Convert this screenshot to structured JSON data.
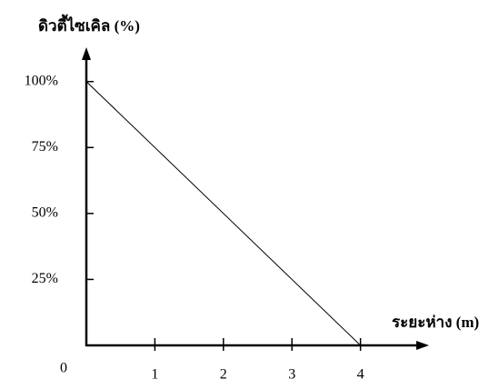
{
  "chart_data": {
    "type": "line",
    "ylabel": "ดิวตี้ไซเคิล (%)",
    "xlabel": "ระยะห่าง (m)",
    "x": [
      0,
      4
    ],
    "series": [
      {
        "color": "#000000",
        "values": [
          100,
          0
        ]
      }
    ],
    "xlim": [
      0,
      5
    ],
    "ylim": [
      0,
      113
    ],
    "xticks": [
      0,
      1,
      2,
      3,
      4
    ],
    "yticks": [
      {
        "value": 25,
        "label": "25%"
      },
      {
        "value": 50,
        "label": "50%"
      },
      {
        "value": 75,
        "label": "75%"
      },
      {
        "value": 100,
        "label": "100%"
      }
    ]
  }
}
